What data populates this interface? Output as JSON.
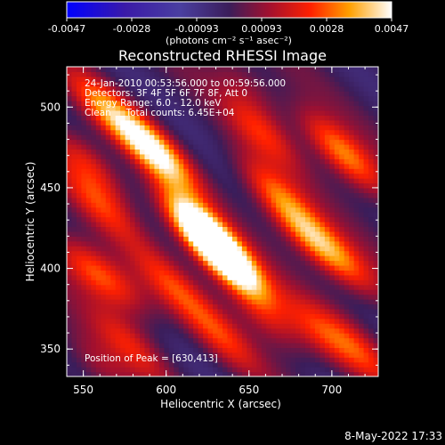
{
  "chart_data": {
    "type": "heatmap",
    "title": "Reconstructed RHESSI Image",
    "xlabel": "Heliocentric X (arcsec)",
    "ylabel": "Heliocentric Y (arcsec)",
    "xlim": [
      540,
      728
    ],
    "ylim": [
      333,
      525
    ],
    "x_ticks": [
      550,
      600,
      650,
      700
    ],
    "y_ticks": [
      350,
      400,
      450,
      500
    ],
    "colorbar": {
      "ticks": [
        "-0.0047",
        "-0.0028",
        "-0.00093",
        "0.00093",
        "0.0028",
        "0.0047"
      ],
      "range": [
        -0.0047,
        0.0047
      ],
      "units_label": "(photons cm⁻² s⁻¹ asec⁻²)"
    },
    "annotations": [
      "24-Jan-2010 00:53:56.000 to 00:59:56.000",
      "Detectors: 3F 4F 5F 6F 7F 8F, Att 0",
      "Energy Range: 6.0 - 12.0 keV",
      "Clean     Total counts: 6.45E+04"
    ],
    "peak_label": "Position of Peak = [630,413]",
    "peak_position": [
      630,
      413
    ],
    "blobs": [
      {
        "x": 630,
        "y": 413,
        "amp": 1.0
      },
      {
        "x": 618,
        "y": 428,
        "amp": 0.75
      },
      {
        "x": 642,
        "y": 400,
        "amp": 0.6
      },
      {
        "x": 588,
        "y": 478,
        "amp": 0.55
      },
      {
        "x": 598,
        "y": 468,
        "amp": 0.45
      },
      {
        "x": 563,
        "y": 500,
        "amp": 0.5
      },
      {
        "x": 553,
        "y": 466,
        "amp": 0.45
      },
      {
        "x": 560,
        "y": 440,
        "amp": 0.4
      },
      {
        "x": 553,
        "y": 400,
        "amp": 0.5
      },
      {
        "x": 573,
        "y": 390,
        "amp": 0.35
      },
      {
        "x": 603,
        "y": 390,
        "amp": 0.4
      },
      {
        "x": 665,
        "y": 448,
        "amp": 0.5
      },
      {
        "x": 658,
        "y": 485,
        "amp": 0.4
      },
      {
        "x": 693,
        "y": 415,
        "amp": 0.45
      },
      {
        "x": 682,
        "y": 425,
        "amp": 0.35
      },
      {
        "x": 700,
        "y": 478,
        "amp": 0.45
      },
      {
        "x": 715,
        "y": 463,
        "amp": 0.4
      },
      {
        "x": 712,
        "y": 400,
        "amp": 0.35
      },
      {
        "x": 633,
        "y": 358,
        "amp": 0.4
      },
      {
        "x": 660,
        "y": 370,
        "amp": 0.4
      },
      {
        "x": 690,
        "y": 362,
        "amp": 0.35
      },
      {
        "x": 715,
        "y": 350,
        "amp": 0.4
      },
      {
        "x": 578,
        "y": 353,
        "amp": 0.35
      },
      {
        "x": 560,
        "y": 340,
        "amp": 0.3
      },
      {
        "x": 648,
        "y": 515,
        "amp": 0.25
      }
    ]
  },
  "footer": {
    "timestamp": "8-May-2022 17:33"
  }
}
